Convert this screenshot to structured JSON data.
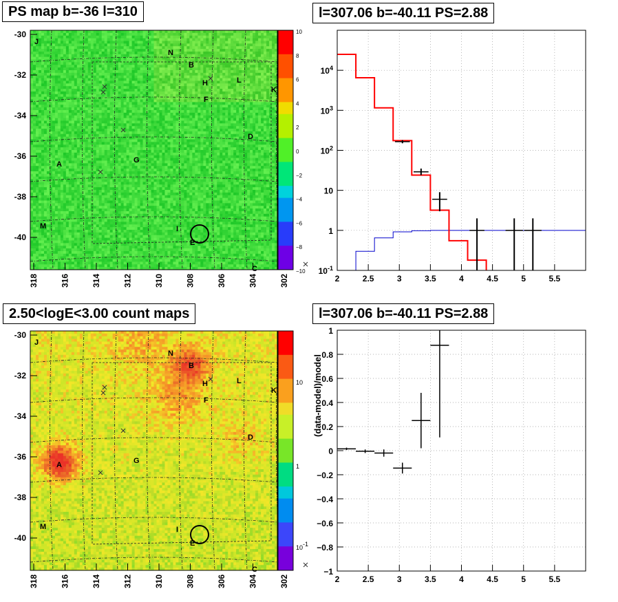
{
  "panels": {
    "ps_map": {
      "title": "PS map b=-36 l=310"
    },
    "spectrum": {
      "title": "l=307.06 b=-40.11 PS=2.88"
    },
    "count_map": {
      "title": "2.50<logE<3.00 count maps"
    },
    "residual": {
      "title": "l=307.06 b=-40.11 PS=2.88"
    }
  },
  "colors": {
    "model": "#ff0000",
    "background": "#0000cc",
    "data": "#000000"
  },
  "map_labels": [
    {
      "t": "J"
    },
    {
      "t": "N"
    },
    {
      "t": "B"
    },
    {
      "t": "H"
    },
    {
      "t": "L"
    },
    {
      "t": "K"
    },
    {
      "t": "F"
    },
    {
      "t": "D"
    },
    {
      "t": "A"
    },
    {
      "t": "G"
    },
    {
      "t": "M"
    },
    {
      "t": "I"
    },
    {
      "t": "E"
    },
    {
      "t": "C"
    }
  ],
  "chart_data": [
    {
      "type": "heatmap",
      "title": "PS map b=-36 l=310",
      "x_ticks": [
        "318",
        "316",
        "314",
        "312",
        "310",
        "308",
        "306",
        "304",
        "302"
      ],
      "y_ticks": [
        "-30",
        "-32",
        "-34",
        "-36",
        "-38",
        "-40"
      ],
      "colorbar_ticks": [
        "10",
        "8",
        "6",
        "4",
        "2",
        "0",
        "−2",
        "−4",
        "−6",
        "−8",
        "−10"
      ],
      "zlim": [
        -10,
        10
      ]
    },
    {
      "type": "line",
      "title": "l=307.06 b=-40.11 PS=2.88",
      "xlim": [
        2,
        6
      ],
      "ylim": [
        0.1,
        100000
      ],
      "yscale": "log",
      "x_ticks": [
        "2",
        "2.5",
        "3",
        "3.5",
        "4",
        "4.5",
        "5",
        "5.5"
      ],
      "y_ticks": [
        "10^{-1}",
        "1",
        "10",
        "10^{2}",
        "10^{3}",
        "10^{4}"
      ],
      "series": [
        {
          "kind": "model_step",
          "x_edges": [
            2,
            2.3,
            2.6,
            2.9,
            3.2,
            3.5,
            3.8,
            4.1,
            4.4
          ],
          "values": [
            25000,
            6500,
            1150,
            175,
            24,
            3.2,
            0.55,
            0.18
          ]
        },
        {
          "kind": "background_step",
          "x_edges": [
            2,
            2.3,
            2.6,
            2.9,
            3.2,
            3.5,
            3.8,
            4.1,
            4.4,
            4.7,
            5.0,
            5.3,
            5.6,
            6.0
          ],
          "values": [
            0.1,
            0.3,
            0.65,
            0.92,
            0.98,
            1.0,
            1.0,
            1.0,
            1.0,
            1.0,
            1.0,
            1.0,
            1.0
          ]
        },
        {
          "kind": "data_points",
          "points": [
            {
              "x": 3.05,
              "y": 165,
              "xerr": 0.12,
              "ylo": 150,
              "yhi": 180
            },
            {
              "x": 3.35,
              "y": 29,
              "xerr": 0.12,
              "ylo": 24,
              "yhi": 35
            },
            {
              "x": 3.65,
              "y": 6,
              "xerr": 0.12,
              "ylo": 3,
              "yhi": 9
            },
            {
              "x": 4.25,
              "y": 1,
              "xerr": 0.12,
              "ylo": 0.1,
              "yhi": 2
            },
            {
              "x": 4.85,
              "y": 1,
              "xerr": 0.14,
              "ylo": 0.1,
              "yhi": 2
            },
            {
              "x": 5.15,
              "y": 1,
              "xerr": 0.14,
              "ylo": 0.1,
              "yhi": 2
            }
          ]
        }
      ]
    },
    {
      "type": "heatmap",
      "title": "2.50<logE<3.00 count maps",
      "x_ticks": [
        "318",
        "316",
        "314",
        "312",
        "310",
        "308",
        "306",
        "304",
        "302"
      ],
      "y_ticks": [
        "-30",
        "-32",
        "-34",
        "-36",
        "-38",
        "-40"
      ],
      "colorbar_ticks": [
        "10",
        "1",
        "10^{-1}"
      ],
      "zscale": "log"
    },
    {
      "type": "scatter",
      "title": "l=307.06 b=-40.11 PS=2.88",
      "ylabel": "(data-model)/model",
      "xlim": [
        2,
        6
      ],
      "ylim": [
        -1,
        1
      ],
      "x_ticks": [
        "2",
        "2.5",
        "3",
        "3.5",
        "4",
        "4.5",
        "5",
        "5.5"
      ],
      "y_ticks": [
        "1",
        "0.8",
        "0.6",
        "0.4",
        "0.2",
        "0",
        "−0.2",
        "−0.4",
        "−0.6",
        "−0.8",
        "−1"
      ],
      "points": [
        {
          "x": 2.15,
          "y": 0.015,
          "xerr": 0.15,
          "ylo": 0.005,
          "yhi": 0.025
        },
        {
          "x": 2.45,
          "y": -0.005,
          "xerr": 0.15,
          "ylo": -0.02,
          "yhi": 0.01
        },
        {
          "x": 2.75,
          "y": -0.02,
          "xerr": 0.15,
          "ylo": -0.05,
          "yhi": 0.01
        },
        {
          "x": 3.05,
          "y": -0.145,
          "xerr": 0.15,
          "ylo": -0.19,
          "yhi": -0.1
        },
        {
          "x": 3.35,
          "y": 0.25,
          "xerr": 0.15,
          "ylo": 0.02,
          "yhi": 0.48
        },
        {
          "x": 3.65,
          "y": 0.875,
          "xerr": 0.15,
          "ylo": 0.11,
          "yhi": 1.0
        }
      ]
    }
  ]
}
